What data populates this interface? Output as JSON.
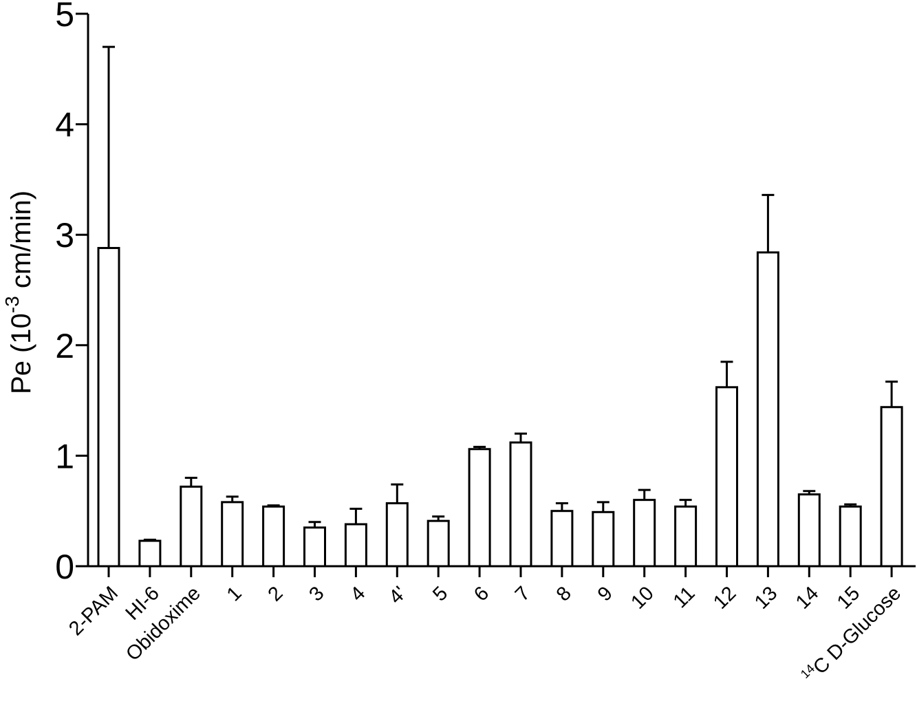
{
  "chart_data": {
    "type": "bar",
    "ylabel": {
      "main": "Pe (10",
      "superscript": "-3",
      "unit": " cm/min)"
    },
    "ylim": [
      0,
      5
    ],
    "yticks": [
      "0",
      "1",
      "2",
      "3",
      "4",
      "5"
    ],
    "grid": false,
    "categories": [
      "2-PAM",
      "HI-6",
      "Obidoxime",
      "1",
      "2",
      "3",
      "4",
      "4'",
      "5",
      "6",
      "7",
      "8",
      "9",
      "10",
      "11",
      "12",
      "13",
      "14",
      "15",
      "14C D-Glucose"
    ],
    "category_labels": [
      {
        "text": "2-PAM"
      },
      {
        "text": "HI-6"
      },
      {
        "text": "Obidoxime"
      },
      {
        "text": "1"
      },
      {
        "text": "2"
      },
      {
        "text": "3"
      },
      {
        "text": "4"
      },
      {
        "text": "4'"
      },
      {
        "text": "5"
      },
      {
        "text": "6"
      },
      {
        "text": "7"
      },
      {
        "text": "8"
      },
      {
        "text": "9"
      },
      {
        "text": "10"
      },
      {
        "text": "11"
      },
      {
        "text": "12"
      },
      {
        "text": "13"
      },
      {
        "text": "14"
      },
      {
        "text": "15"
      },
      {
        "sup": "14",
        "text": "C D-Glucose"
      }
    ],
    "values": [
      2.88,
      0.23,
      0.72,
      0.58,
      0.54,
      0.35,
      0.38,
      0.57,
      0.41,
      1.06,
      1.12,
      0.5,
      0.49,
      0.6,
      0.54,
      1.62,
      2.84,
      0.65,
      0.54,
      1.44
    ],
    "error_upper": [
      4.7,
      0.24,
      0.8,
      0.63,
      0.55,
      0.4,
      0.52,
      0.74,
      0.45,
      1.08,
      1.2,
      0.57,
      0.58,
      0.69,
      0.6,
      1.85,
      3.36,
      0.68,
      0.56,
      1.67
    ],
    "colors": {
      "bar_fill": "#ffffff",
      "stroke": "#000000"
    }
  }
}
